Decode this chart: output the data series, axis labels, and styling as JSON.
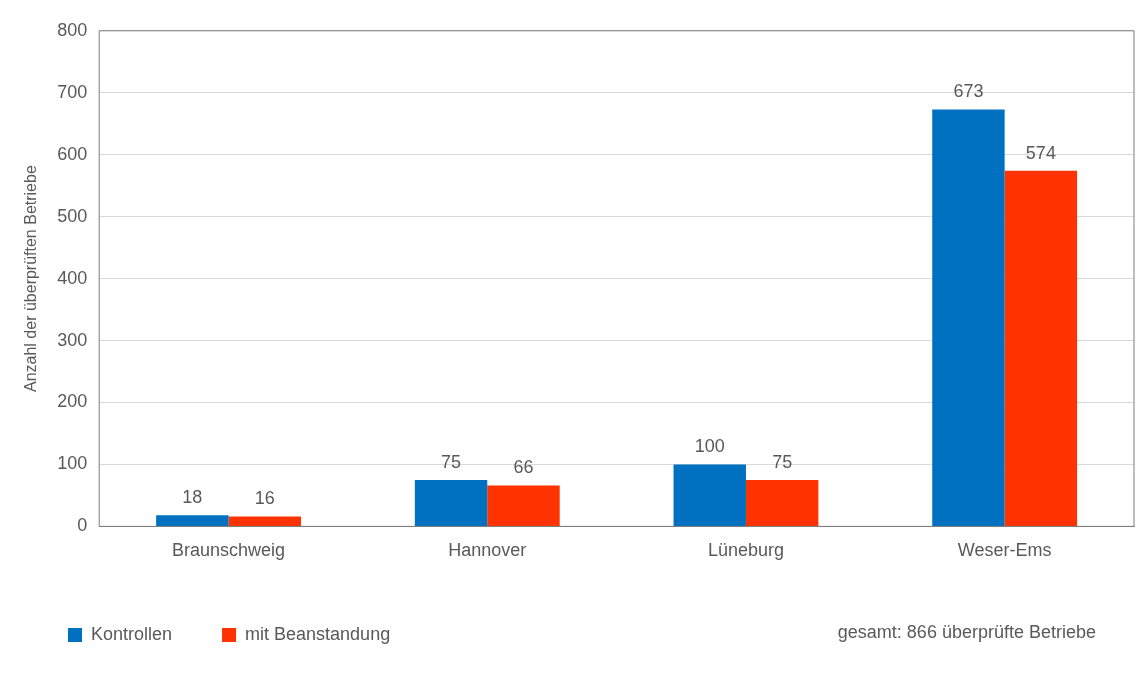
{
  "chart_data": {
    "type": "bar",
    "ylabel": "Anzahl der überprüften Betriebe",
    "categories": [
      "Braunschweig",
      "Hannover",
      "Lüneburg",
      "Weser-Ems"
    ],
    "series": [
      {
        "name": "Kontrollen",
        "color": "#0070c0",
        "values": [
          18,
          75,
          100,
          673
        ]
      },
      {
        "name": "mit Beanstandung",
        "color": "#ff3300",
        "values": [
          16,
          66,
          75,
          574
        ]
      }
    ],
    "ylim": [
      0,
      800
    ],
    "yticks": [
      0,
      100,
      200,
      300,
      400,
      500,
      600,
      700,
      800
    ],
    "grid": "y",
    "legend": "bottom left",
    "data_labels": true,
    "annotations": [
      "gesamt: 866 überprüfte Betriebe"
    ]
  }
}
